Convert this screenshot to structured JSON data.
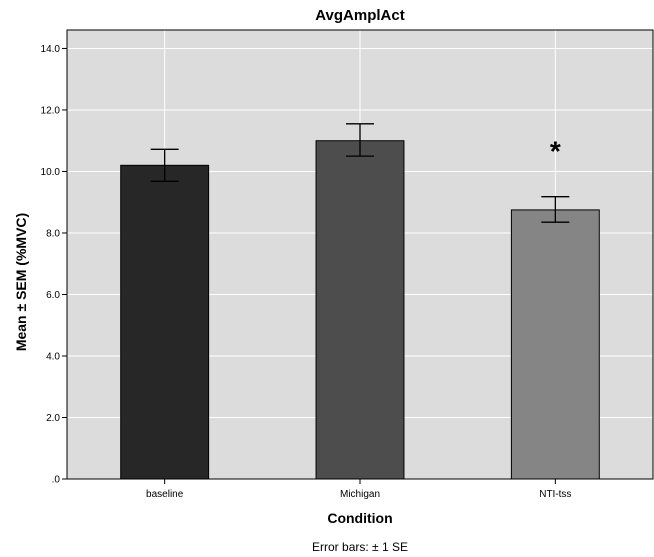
{
  "chart_data": {
    "type": "bar",
    "title": "AvgAmplAct",
    "xlabel": "Condition",
    "ylabel": "Mean ± SEM (%MVC)",
    "categories": [
      "baseline",
      "Michigan",
      "NTI-tss"
    ],
    "values": [
      10.2,
      11.0,
      8.75
    ],
    "error_low": [
      9.68,
      10.5,
      8.35
    ],
    "error_high": [
      10.72,
      11.55,
      9.18
    ],
    "bar_colors": [
      "#272727",
      "#4d4d4d",
      "#858585"
    ],
    "ylim": [
      0,
      14.6
    ],
    "yticks": [
      0,
      2,
      4,
      6,
      8,
      10,
      12,
      14
    ],
    "ytick_labels": [
      ".0",
      "2.0",
      "4.0",
      "6.0",
      "8.0",
      "10.0",
      "12.0",
      "14.0"
    ],
    "grid": true,
    "background_color": "#dcdcdc",
    "annotations": [
      {
        "text": "*",
        "category": "NTI-tss"
      }
    ],
    "footnote": "Error bars: ± 1 SE"
  }
}
